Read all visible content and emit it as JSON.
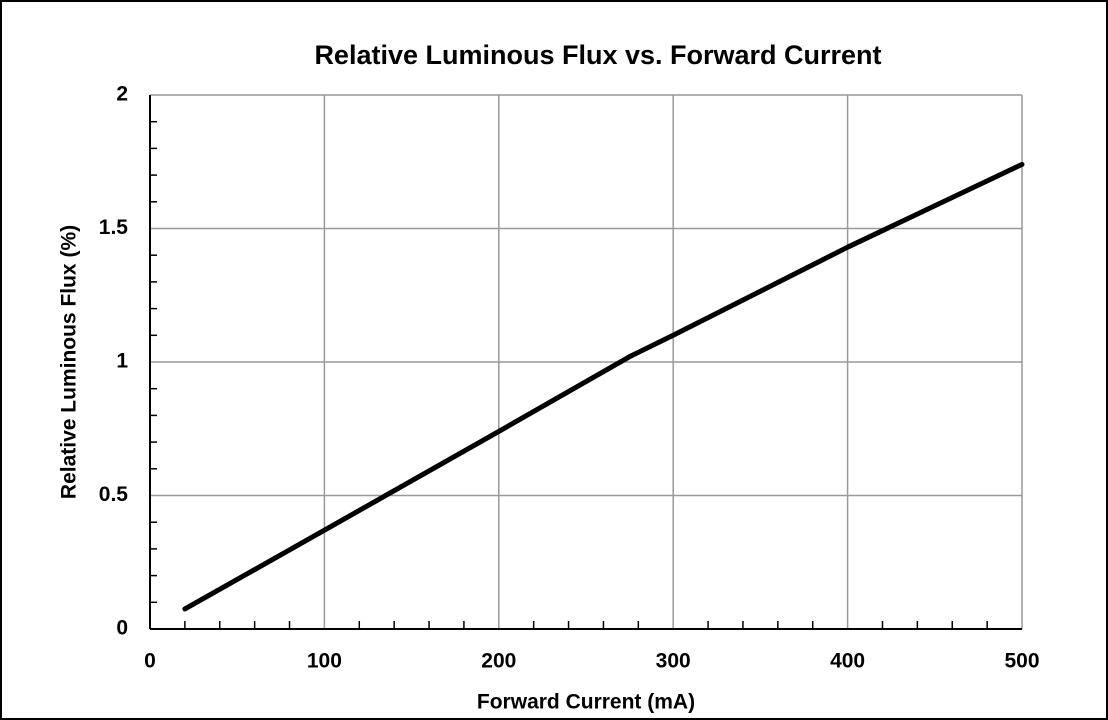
{
  "chart_data": {
    "type": "line",
    "title": "Relative Luminous Flux vs. Forward Current",
    "x_label": "Forward Current (mA)",
    "y_label": "Relative Luminous Flux (%)",
    "series": [
      {
        "name": "Relative Luminous Flux",
        "color": "#000000",
        "x": [
          20,
          100,
          200,
          275,
          300,
          400,
          500
        ],
        "values": [
          0.075,
          0.37,
          0.74,
          1.02,
          1.1,
          1.43,
          1.74
        ]
      }
    ],
    "xlim": [
      0,
      500
    ],
    "xticks": [
      0,
      100,
      200,
      300,
      400,
      500
    ],
    "ylim": [
      0,
      2
    ],
    "yticks": [
      0,
      0.5,
      1,
      1.5,
      2
    ],
    "xminorticks": [
      20,
      40,
      60,
      80,
      120,
      140,
      160,
      180,
      220,
      240,
      260,
      280,
      320,
      340,
      360,
      380,
      420,
      440,
      460,
      480
    ],
    "yminorticks": [
      0.1,
      0.2,
      0.3,
      0.4,
      0.6,
      0.7,
      0.8,
      0.9,
      1.1,
      1.2,
      1.3,
      1.4,
      1.6,
      1.7,
      1.8,
      1.9
    ],
    "grid": true
  }
}
